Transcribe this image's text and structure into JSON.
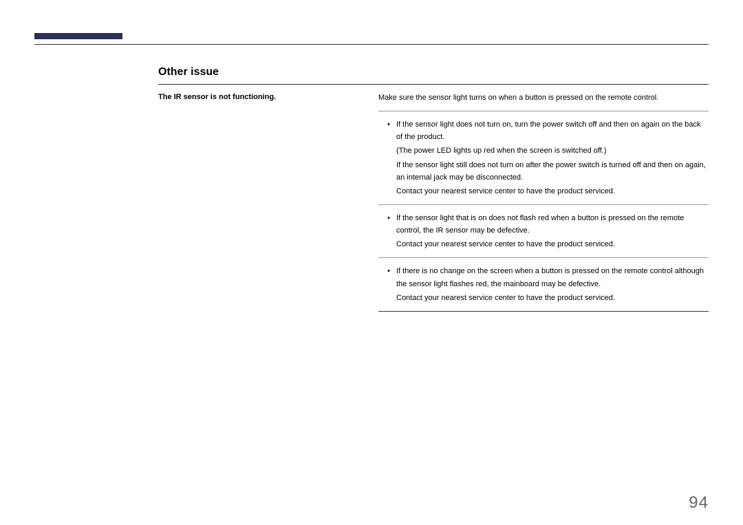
{
  "colors": {
    "tab_mark": "#2a2f5a",
    "rule_dark": "#333333",
    "rule_light": "#999999",
    "page_number": "#666666",
    "text": "#000000",
    "background": "#ffffff"
  },
  "section_title": "Other issue",
  "issue": {
    "label": "The IR sensor is not functioning.",
    "intro": "Make sure the sensor light turns on when a button is pressed on the remote control.",
    "blocks": [
      {
        "bullet": "If the sensor light does not turn on, turn the power switch off and then on again on the back of the product.",
        "lines": [
          "(The power LED lights up red when the screen is switched off.)",
          "If the sensor light still does not turn on after the power switch is turned off and then on again, an internal jack may be disconnected.",
          "Contact your nearest service center to have the product serviced."
        ]
      },
      {
        "bullet": "If the sensor light that is on does not flash red when a button is pressed on the remote control, the IR sensor may be defective.",
        "lines": [
          "Contact your nearest service center to have the product serviced."
        ]
      },
      {
        "bullet": "If there is no change on the screen when a button is pressed on the remote control although the sensor light flashes red, the mainboard may be defective.",
        "lines": [
          "Contact your nearest service center to have the product serviced."
        ]
      }
    ]
  },
  "page_number": "94"
}
